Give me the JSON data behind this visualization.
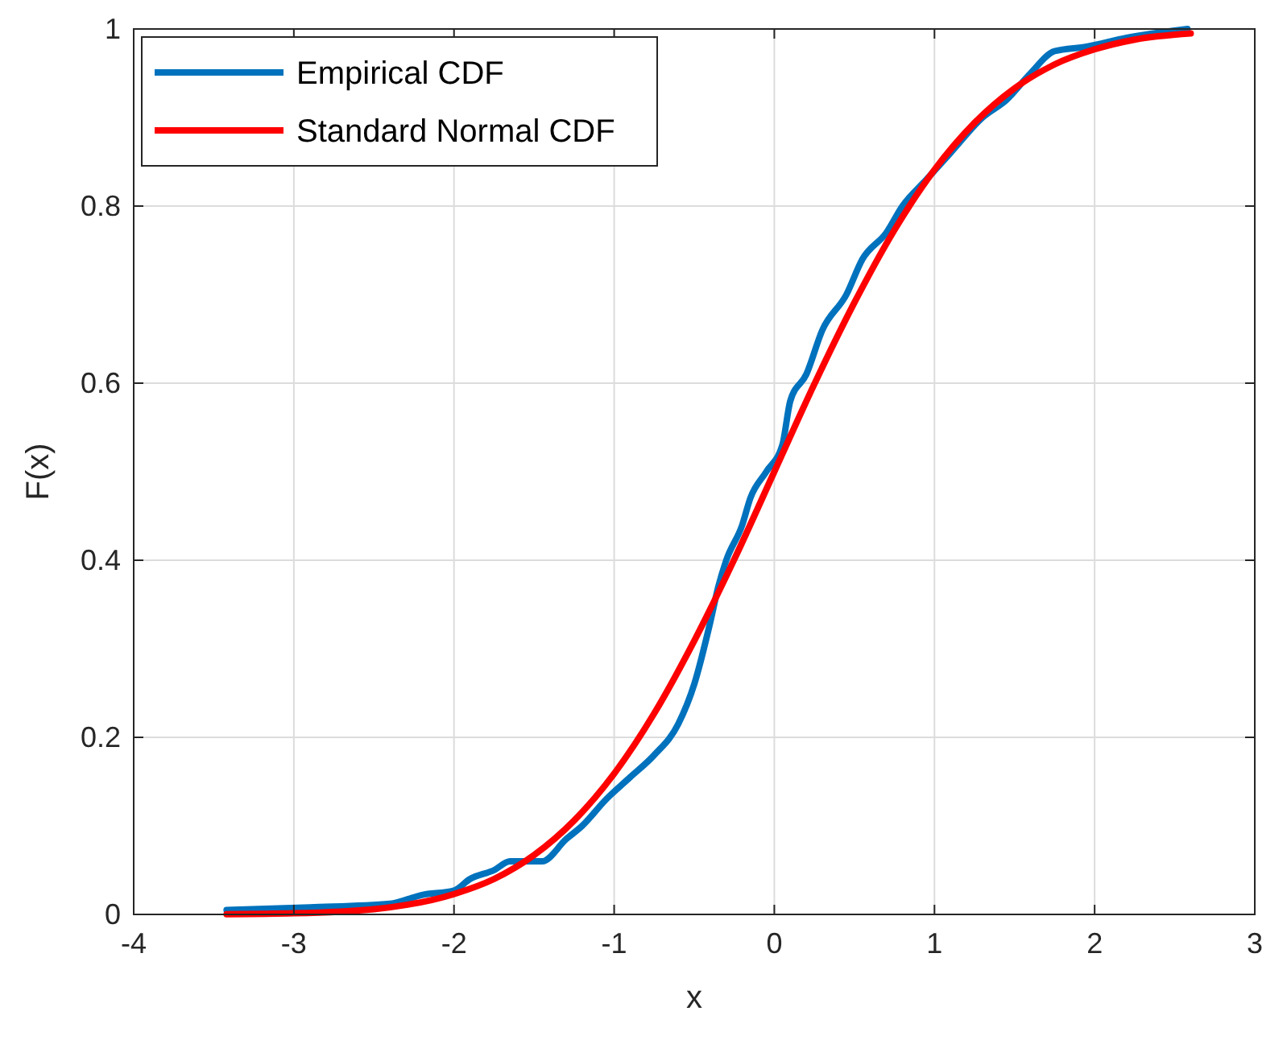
{
  "chart_data": {
    "type": "line",
    "xlabel": "x",
    "ylabel": "F(x)",
    "xlim": [
      -4,
      3
    ],
    "ylim": [
      0,
      1
    ],
    "xticks": [
      -4,
      -3,
      -2,
      -1,
      0,
      1,
      2,
      3
    ],
    "yticks": [
      0,
      0.2,
      0.4,
      0.6,
      0.8,
      1
    ],
    "grid": true,
    "legend": "top left",
    "line_style": "solid",
    "marker": "none",
    "series": [
      {
        "name": "Empirical CDF",
        "color": "#0072bd",
        "x": [
          -3.42,
          -2.9,
          -2.4,
          -2.2,
          -2.0,
          -1.9,
          -1.75,
          -1.65,
          -1.45,
          -1.3,
          -1.2,
          -1.05,
          -0.9,
          -0.75,
          -0.6,
          -0.5,
          -0.4,
          -0.35,
          -0.3,
          -0.2,
          -0.15,
          -0.05,
          0.05,
          0.1,
          0.2,
          0.3,
          0.45,
          0.55,
          0.7,
          0.8,
          0.95,
          1.1,
          1.3,
          1.45,
          1.6,
          1.75,
          1.95,
          2.2,
          2.58
        ],
        "values": [
          0.005,
          0.008,
          0.012,
          0.022,
          0.027,
          0.04,
          0.05,
          0.06,
          0.06,
          0.085,
          0.1,
          0.13,
          0.155,
          0.18,
          0.215,
          0.26,
          0.33,
          0.37,
          0.4,
          0.44,
          0.47,
          0.5,
          0.53,
          0.58,
          0.61,
          0.66,
          0.7,
          0.74,
          0.77,
          0.8,
          0.83,
          0.86,
          0.9,
          0.92,
          0.95,
          0.975,
          0.98,
          0.99,
          1.0
        ]
      },
      {
        "name": "Standard Normal CDF",
        "color": "#ff0000",
        "x": [
          -3.42,
          -3,
          -2.5,
          -2,
          -1.75,
          -1.5,
          -1.25,
          -1,
          -0.75,
          -0.5,
          -0.25,
          0,
          0.25,
          0.5,
          0.75,
          1,
          1.25,
          1.5,
          1.75,
          2,
          2.25,
          2.6
        ],
        "values": [
          0.0003,
          0.0013,
          0.006,
          0.023,
          0.04,
          0.067,
          0.106,
          0.159,
          0.227,
          0.309,
          0.401,
          0.5,
          0.599,
          0.691,
          0.773,
          0.841,
          0.894,
          0.933,
          0.96,
          0.977,
          0.988,
          0.995
        ]
      }
    ]
  }
}
